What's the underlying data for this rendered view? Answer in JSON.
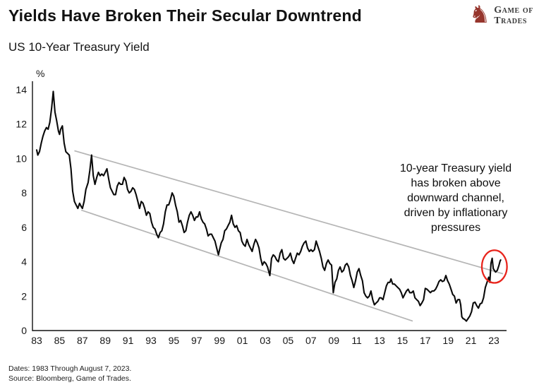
{
  "header": {
    "title": "Yields Have Broken Their Secular Downtrend",
    "subtitle": "US 10-Year Treasury Yield"
  },
  "logo": {
    "line1": "Game of",
    "line2": "Trades",
    "icon_color": "#96352c",
    "text_color": "#3a3a3a"
  },
  "footer": {
    "line1": "Dates: 1983 Through August 7, 2023.",
    "line2": "Source: Bloomberg, Game of Trades."
  },
  "chart_data": {
    "type": "line",
    "title": "US 10-Year Treasury Yield",
    "ylabel": "%",
    "xlabel": "",
    "ylim": [
      0,
      14
    ],
    "yticks": [
      0,
      2,
      4,
      6,
      8,
      10,
      12,
      14
    ],
    "xtick_labels": [
      "83",
      "85",
      "87",
      "89",
      "91",
      "93",
      "95",
      "97",
      "99",
      "01",
      "03",
      "05",
      "07",
      "09",
      "11",
      "13",
      "15",
      "17",
      "19",
      "21",
      "23"
    ],
    "x_range_years": [
      1983,
      2023.6
    ],
    "grid": false,
    "legend": "none",
    "annotation": {
      "text": "10-year Treasury yield\nhas broken above\ndownward channel,\ndriven by inflationary\npressures",
      "position": "upper-right"
    },
    "colors": {
      "line": "#0a0a0a",
      "channel": "#b5b5b5",
      "highlight": "#e8241c",
      "axis": "#111111"
    },
    "channel_lines": [
      {
        "name": "upper-trendline",
        "from": [
          1986.3,
          10.45
        ],
        "to": [
          2023.8,
          3.3
        ]
      },
      {
        "name": "lower-trendline",
        "from": [
          1986.9,
          7.0
        ],
        "to": [
          2015.9,
          0.55
        ]
      }
    ],
    "highlight_circle": {
      "x": 2023.05,
      "y": 3.72,
      "rx_years": 1.1,
      "ry_units": 0.95
    },
    "series": [
      {
        "name": "US 10-Year Treasury Yield",
        "points": [
          [
            1983,
            10.5
          ],
          [
            1983.1,
            10.2
          ],
          [
            1983.25,
            10.4
          ],
          [
            1983.4,
            10.9
          ],
          [
            1983.55,
            11.3
          ],
          [
            1983.7,
            11.6
          ],
          [
            1983.85,
            11.8
          ],
          [
            1984,
            11.7
          ],
          [
            1984.15,
            12.1
          ],
          [
            1984.3,
            12.9
          ],
          [
            1984.45,
            13.9
          ],
          [
            1984.6,
            12.7
          ],
          [
            1984.75,
            12.2
          ],
          [
            1984.9,
            11.6
          ],
          [
            1985,
            11.4
          ],
          [
            1985.1,
            11.7
          ],
          [
            1985.25,
            11.9
          ],
          [
            1985.4,
            10.9
          ],
          [
            1985.55,
            10.4
          ],
          [
            1985.7,
            10.3
          ],
          [
            1985.85,
            10.2
          ],
          [
            1986,
            9.4
          ],
          [
            1986.15,
            8.1
          ],
          [
            1986.3,
            7.5
          ],
          [
            1986.45,
            7.3
          ],
          [
            1986.6,
            7.1
          ],
          [
            1986.75,
            7.4
          ],
          [
            1986.9,
            7.2
          ],
          [
            1987,
            7.1
          ],
          [
            1987.15,
            7.5
          ],
          [
            1987.3,
            8.2
          ],
          [
            1987.5,
            8.6
          ],
          [
            1987.65,
            9.3
          ],
          [
            1987.8,
            10.2
          ],
          [
            1987.95,
            9.0
          ],
          [
            1988.1,
            8.5
          ],
          [
            1988.25,
            8.9
          ],
          [
            1988.4,
            9.2
          ],
          [
            1988.55,
            9.0
          ],
          [
            1988.7,
            9.1
          ],
          [
            1988.85,
            9.0
          ],
          [
            1989,
            9.2
          ],
          [
            1989.15,
            9.4
          ],
          [
            1989.3,
            8.8
          ],
          [
            1989.45,
            8.3
          ],
          [
            1989.6,
            8.1
          ],
          [
            1989.75,
            7.9
          ],
          [
            1989.9,
            7.9
          ],
          [
            1990.05,
            8.4
          ],
          [
            1990.2,
            8.6
          ],
          [
            1990.35,
            8.5
          ],
          [
            1990.5,
            8.5
          ],
          [
            1990.65,
            8.9
          ],
          [
            1990.8,
            8.7
          ],
          [
            1990.95,
            8.2
          ],
          [
            1991.1,
            8.0
          ],
          [
            1991.25,
            8.1
          ],
          [
            1991.4,
            8.3
          ],
          [
            1991.55,
            8.2
          ],
          [
            1991.7,
            7.9
          ],
          [
            1991.85,
            7.5
          ],
          [
            1992,
            7.1
          ],
          [
            1992.15,
            7.5
          ],
          [
            1992.3,
            7.4
          ],
          [
            1992.45,
            7.1
          ],
          [
            1992.6,
            6.7
          ],
          [
            1992.75,
            6.9
          ],
          [
            1992.9,
            6.8
          ],
          [
            1993.05,
            6.3
          ],
          [
            1993.2,
            6.0
          ],
          [
            1993.35,
            5.9
          ],
          [
            1993.5,
            5.6
          ],
          [
            1993.65,
            5.4
          ],
          [
            1993.8,
            5.7
          ],
          [
            1993.95,
            5.8
          ],
          [
            1994.1,
            6.2
          ],
          [
            1994.25,
            6.9
          ],
          [
            1994.4,
            7.3
          ],
          [
            1994.55,
            7.3
          ],
          [
            1994.7,
            7.6
          ],
          [
            1994.85,
            8.0
          ],
          [
            1995,
            7.8
          ],
          [
            1995.15,
            7.3
          ],
          [
            1995.3,
            6.9
          ],
          [
            1995.45,
            6.3
          ],
          [
            1995.6,
            6.4
          ],
          [
            1995.75,
            6.1
          ],
          [
            1995.9,
            5.7
          ],
          [
            1996.05,
            5.8
          ],
          [
            1996.2,
            6.3
          ],
          [
            1996.35,
            6.7
          ],
          [
            1996.5,
            6.9
          ],
          [
            1996.65,
            6.7
          ],
          [
            1996.8,
            6.4
          ],
          [
            1996.95,
            6.6
          ],
          [
            1997.1,
            6.6
          ],
          [
            1997.25,
            6.9
          ],
          [
            1997.4,
            6.5
          ],
          [
            1997.55,
            6.3
          ],
          [
            1997.7,
            6.2
          ],
          [
            1997.85,
            5.9
          ],
          [
            1998,
            5.5
          ],
          [
            1998.15,
            5.6
          ],
          [
            1998.3,
            5.6
          ],
          [
            1998.45,
            5.4
          ],
          [
            1998.6,
            5.2
          ],
          [
            1998.75,
            4.8
          ],
          [
            1998.9,
            4.4
          ],
          [
            1999,
            4.7
          ],
          [
            1999.15,
            5.1
          ],
          [
            1999.3,
            5.3
          ],
          [
            1999.45,
            5.8
          ],
          [
            1999.6,
            5.9
          ],
          [
            1999.75,
            6.1
          ],
          [
            1999.9,
            6.3
          ],
          [
            2000.05,
            6.7
          ],
          [
            2000.2,
            6.2
          ],
          [
            2000.35,
            6.0
          ],
          [
            2000.5,
            6.1
          ],
          [
            2000.65,
            5.8
          ],
          [
            2000.8,
            5.7
          ],
          [
            2000.95,
            5.2
          ],
          [
            2001.1,
            5.0
          ],
          [
            2001.25,
            4.9
          ],
          [
            2001.4,
            5.3
          ],
          [
            2001.55,
            5.0
          ],
          [
            2001.7,
            4.8
          ],
          [
            2001.85,
            4.6
          ],
          [
            2002,
            5.0
          ],
          [
            2002.15,
            5.3
          ],
          [
            2002.3,
            5.1
          ],
          [
            2002.45,
            4.8
          ],
          [
            2002.6,
            4.2
          ],
          [
            2002.75,
            3.8
          ],
          [
            2002.9,
            4.0
          ],
          [
            2003.05,
            3.9
          ],
          [
            2003.2,
            3.7
          ],
          [
            2003.4,
            3.2
          ],
          [
            2003.55,
            4.2
          ],
          [
            2003.7,
            4.4
          ],
          [
            2003.85,
            4.3
          ],
          [
            2004,
            4.1
          ],
          [
            2004.15,
            4.0
          ],
          [
            2004.3,
            4.5
          ],
          [
            2004.45,
            4.7
          ],
          [
            2004.6,
            4.2
          ],
          [
            2004.75,
            4.1
          ],
          [
            2004.9,
            4.2
          ],
          [
            2005.05,
            4.3
          ],
          [
            2005.2,
            4.5
          ],
          [
            2005.35,
            4.1
          ],
          [
            2005.5,
            3.9
          ],
          [
            2005.65,
            4.2
          ],
          [
            2005.8,
            4.5
          ],
          [
            2005.95,
            4.4
          ],
          [
            2006.1,
            4.6
          ],
          [
            2006.25,
            4.9
          ],
          [
            2006.4,
            5.1
          ],
          [
            2006.55,
            5.2
          ],
          [
            2006.7,
            4.8
          ],
          [
            2006.85,
            4.6
          ],
          [
            2007,
            4.7
          ],
          [
            2007.15,
            4.6
          ],
          [
            2007.3,
            4.7
          ],
          [
            2007.45,
            5.2
          ],
          [
            2007.6,
            4.9
          ],
          [
            2007.75,
            4.6
          ],
          [
            2007.9,
            4.2
          ],
          [
            2008.05,
            3.7
          ],
          [
            2008.2,
            3.5
          ],
          [
            2008.35,
            3.9
          ],
          [
            2008.5,
            4.1
          ],
          [
            2008.65,
            3.9
          ],
          [
            2008.8,
            3.8
          ],
          [
            2008.95,
            2.2
          ],
          [
            2009.1,
            2.8
          ],
          [
            2009.25,
            3.0
          ],
          [
            2009.4,
            3.5
          ],
          [
            2009.55,
            3.7
          ],
          [
            2009.7,
            3.4
          ],
          [
            2009.85,
            3.5
          ],
          [
            2010,
            3.8
          ],
          [
            2010.15,
            3.9
          ],
          [
            2010.3,
            3.7
          ],
          [
            2010.45,
            3.2
          ],
          [
            2010.6,
            2.9
          ],
          [
            2010.75,
            2.5
          ],
          [
            2010.9,
            2.9
          ],
          [
            2011.05,
            3.4
          ],
          [
            2011.2,
            3.6
          ],
          [
            2011.35,
            3.2
          ],
          [
            2011.5,
            2.9
          ],
          [
            2011.65,
            2.2
          ],
          [
            2011.8,
            2.0
          ],
          [
            2011.95,
            1.9
          ],
          [
            2012.1,
            2.0
          ],
          [
            2012.25,
            2.3
          ],
          [
            2012.4,
            1.8
          ],
          [
            2012.55,
            1.5
          ],
          [
            2012.7,
            1.6
          ],
          [
            2012.85,
            1.7
          ],
          [
            2013,
            1.9
          ],
          [
            2013.15,
            1.9
          ],
          [
            2013.3,
            1.8
          ],
          [
            2013.45,
            2.2
          ],
          [
            2013.6,
            2.6
          ],
          [
            2013.75,
            2.8
          ],
          [
            2013.9,
            2.8
          ],
          [
            2014,
            3.0
          ],
          [
            2014.15,
            2.7
          ],
          [
            2014.3,
            2.7
          ],
          [
            2014.45,
            2.6
          ],
          [
            2014.6,
            2.5
          ],
          [
            2014.75,
            2.4
          ],
          [
            2014.9,
            2.2
          ],
          [
            2015.05,
            1.9
          ],
          [
            2015.2,
            2.1
          ],
          [
            2015.35,
            2.3
          ],
          [
            2015.5,
            2.4
          ],
          [
            2015.65,
            2.2
          ],
          [
            2015.8,
            2.2
          ],
          [
            2015.95,
            2.3
          ],
          [
            2016.1,
            1.9
          ],
          [
            2016.25,
            1.8
          ],
          [
            2016.4,
            1.7
          ],
          [
            2016.55,
            1.45
          ],
          [
            2016.7,
            1.6
          ],
          [
            2016.85,
            1.8
          ],
          [
            2017,
            2.45
          ],
          [
            2017.15,
            2.4
          ],
          [
            2017.3,
            2.3
          ],
          [
            2017.45,
            2.2
          ],
          [
            2017.6,
            2.3
          ],
          [
            2017.75,
            2.3
          ],
          [
            2017.9,
            2.4
          ],
          [
            2018.05,
            2.6
          ],
          [
            2018.2,
            2.85
          ],
          [
            2018.35,
            2.95
          ],
          [
            2018.5,
            2.85
          ],
          [
            2018.65,
            2.9
          ],
          [
            2018.8,
            3.2
          ],
          [
            2018.95,
            2.9
          ],
          [
            2019.1,
            2.7
          ],
          [
            2019.25,
            2.4
          ],
          [
            2019.4,
            2.1
          ],
          [
            2019.55,
            2.0
          ],
          [
            2019.7,
            1.6
          ],
          [
            2019.85,
            1.8
          ],
          [
            2020,
            1.8
          ],
          [
            2020.1,
            1.5
          ],
          [
            2020.2,
            0.8
          ],
          [
            2020.3,
            0.7
          ],
          [
            2020.45,
            0.65
          ],
          [
            2020.6,
            0.55
          ],
          [
            2020.75,
            0.7
          ],
          [
            2020.9,
            0.85
          ],
          [
            2021.05,
            1.1
          ],
          [
            2021.2,
            1.6
          ],
          [
            2021.35,
            1.65
          ],
          [
            2021.5,
            1.45
          ],
          [
            2021.65,
            1.3
          ],
          [
            2021.8,
            1.55
          ],
          [
            2021.95,
            1.6
          ],
          [
            2022.1,
            1.9
          ],
          [
            2022.25,
            2.5
          ],
          [
            2022.45,
            2.9
          ],
          [
            2022.55,
            3.1
          ],
          [
            2022.65,
            2.8
          ],
          [
            2022.75,
            3.9
          ],
          [
            2022.85,
            4.2
          ],
          [
            2022.95,
            3.6
          ],
          [
            2023.05,
            3.5
          ],
          [
            2023.15,
            3.4
          ],
          [
            2023.3,
            3.5
          ],
          [
            2023.45,
            3.8
          ],
          [
            2023.55,
            4.05
          ],
          [
            2023.6,
            4.1
          ]
        ]
      }
    ]
  }
}
